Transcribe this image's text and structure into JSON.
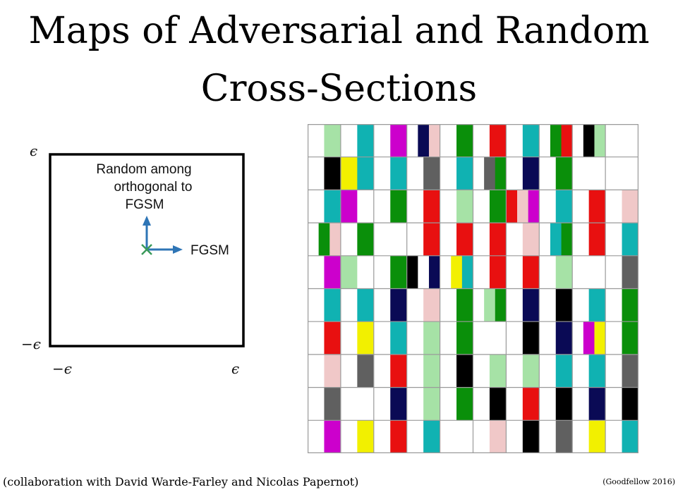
{
  "slide": {
    "title_line1": "Maps of Adversarial and Random",
    "title_line2": "Cross-Sections",
    "footer_left": "(collaboration with David Warde-Farley and Nicolas Papernot)",
    "footer_right": "(Goodfellow 2016)"
  },
  "diagram": {
    "y_max_label": "ϵ",
    "y_min_label": "−ϵ",
    "x_min_label": "−ϵ",
    "x_max_label": "ϵ",
    "vertical_axis_label_lines": [
      "Random among",
      "orthogonal to",
      "FGSM"
    ],
    "horizontal_axis_label": "FGSM",
    "colors": {
      "arrow": "#2e75b6",
      "origin_marker": "#3a9a5a",
      "frame": "#000000"
    }
  },
  "class_map_grid": {
    "rows": 10,
    "cols": 10,
    "palette": {
      "W": "#ffffff",
      "K": "#000000",
      "G": "#0a8f0a",
      "L": "#a6e2a6",
      "T": "#10b2b2",
      "R": "#e81010",
      "P": "#f0c8c8",
      "M": "#cc00cc",
      "N": "#0a0a55",
      "Y": "#f2f000",
      "D": "#606060"
    },
    "cells": [
      [
        [
          "W",
          "L"
        ],
        [
          "W",
          "T"
        ],
        [
          "W",
          "M"
        ],
        [
          "W",
          "N",
          "P"
        ],
        [
          "W",
          "G"
        ],
        [
          "W",
          "R"
        ],
        [
          "W",
          "T"
        ],
        [
          "W",
          "G",
          "R"
        ],
        [
          "W",
          "K",
          "L"
        ],
        [
          "W",
          "W"
        ]
      ],
      [
        [
          "W",
          "K"
        ],
        [
          "Y",
          "T"
        ],
        [
          "W",
          "T"
        ],
        [
          "W",
          "D"
        ],
        [
          "W",
          "T"
        ],
        [
          "W",
          "D",
          "G"
        ],
        [
          "W",
          "N"
        ],
        [
          "W",
          "G"
        ],
        [
          "W",
          "W"
        ],
        [
          "W",
          "W"
        ]
      ],
      [
        [
          "W",
          "T"
        ],
        [
          "M",
          "W"
        ],
        [
          "W",
          "G"
        ],
        [
          "W",
          "R"
        ],
        [
          "W",
          "L"
        ],
        [
          "W",
          "G"
        ],
        [
          "R",
          "P",
          "M"
        ],
        [
          "W",
          "T"
        ],
        [
          "W",
          "R"
        ],
        [
          "W",
          "P"
        ]
      ],
      [
        [
          "W",
          "G",
          "P"
        ],
        [
          "W",
          "G"
        ],
        [
          "W",
          "W"
        ],
        [
          "W",
          "R"
        ],
        [
          "W",
          "R"
        ],
        [
          "W",
          "R"
        ],
        [
          "W",
          "P"
        ],
        [
          "W",
          "T",
          "G"
        ],
        [
          "W",
          "R"
        ],
        [
          "W",
          "T"
        ]
      ],
      [
        [
          "W",
          "M"
        ],
        [
          "L",
          "W"
        ],
        [
          "W",
          "G"
        ],
        [
          "K",
          "W",
          "N"
        ],
        [
          "W",
          "Y",
          "T"
        ],
        [
          "W",
          "R"
        ],
        [
          "W",
          "R"
        ],
        [
          "W",
          "L"
        ],
        [
          "W",
          "W"
        ],
        [
          "W",
          "D"
        ]
      ],
      [
        [
          "W",
          "T"
        ],
        [
          "W",
          "T"
        ],
        [
          "W",
          "N"
        ],
        [
          "W",
          "P"
        ],
        [
          "W",
          "G"
        ],
        [
          "W",
          "L",
          "G"
        ],
        [
          "W",
          "N"
        ],
        [
          "W",
          "K"
        ],
        [
          "W",
          "T"
        ],
        [
          "W",
          "G"
        ]
      ],
      [
        [
          "W",
          "R"
        ],
        [
          "W",
          "Y"
        ],
        [
          "W",
          "T"
        ],
        [
          "W",
          "L"
        ],
        [
          "W",
          "G"
        ],
        [
          "W",
          "W"
        ],
        [
          "W",
          "K"
        ],
        [
          "W",
          "N"
        ],
        [
          "W",
          "M",
          "Y"
        ],
        [
          "W",
          "G"
        ]
      ],
      [
        [
          "W",
          "P"
        ],
        [
          "W",
          "D"
        ],
        [
          "W",
          "R"
        ],
        [
          "W",
          "L"
        ],
        [
          "W",
          "K"
        ],
        [
          "W",
          "L"
        ],
        [
          "W",
          "L"
        ],
        [
          "W",
          "T"
        ],
        [
          "W",
          "T"
        ],
        [
          "W",
          "D"
        ]
      ],
      [
        [
          "W",
          "D"
        ],
        [
          "W",
          "W"
        ],
        [
          "W",
          "N"
        ],
        [
          "W",
          "L"
        ],
        [
          "W",
          "G"
        ],
        [
          "W",
          "K"
        ],
        [
          "W",
          "R"
        ],
        [
          "W",
          "K"
        ],
        [
          "W",
          "N"
        ],
        [
          "W",
          "K"
        ]
      ],
      [
        [
          "W",
          "M"
        ],
        [
          "W",
          "Y"
        ],
        [
          "W",
          "R"
        ],
        [
          "W",
          "T"
        ],
        [
          "W",
          "W"
        ],
        [
          "W",
          "P"
        ],
        [
          "W",
          "K"
        ],
        [
          "W",
          "D"
        ],
        [
          "W",
          "Y"
        ],
        [
          "W",
          "T"
        ]
      ]
    ]
  }
}
